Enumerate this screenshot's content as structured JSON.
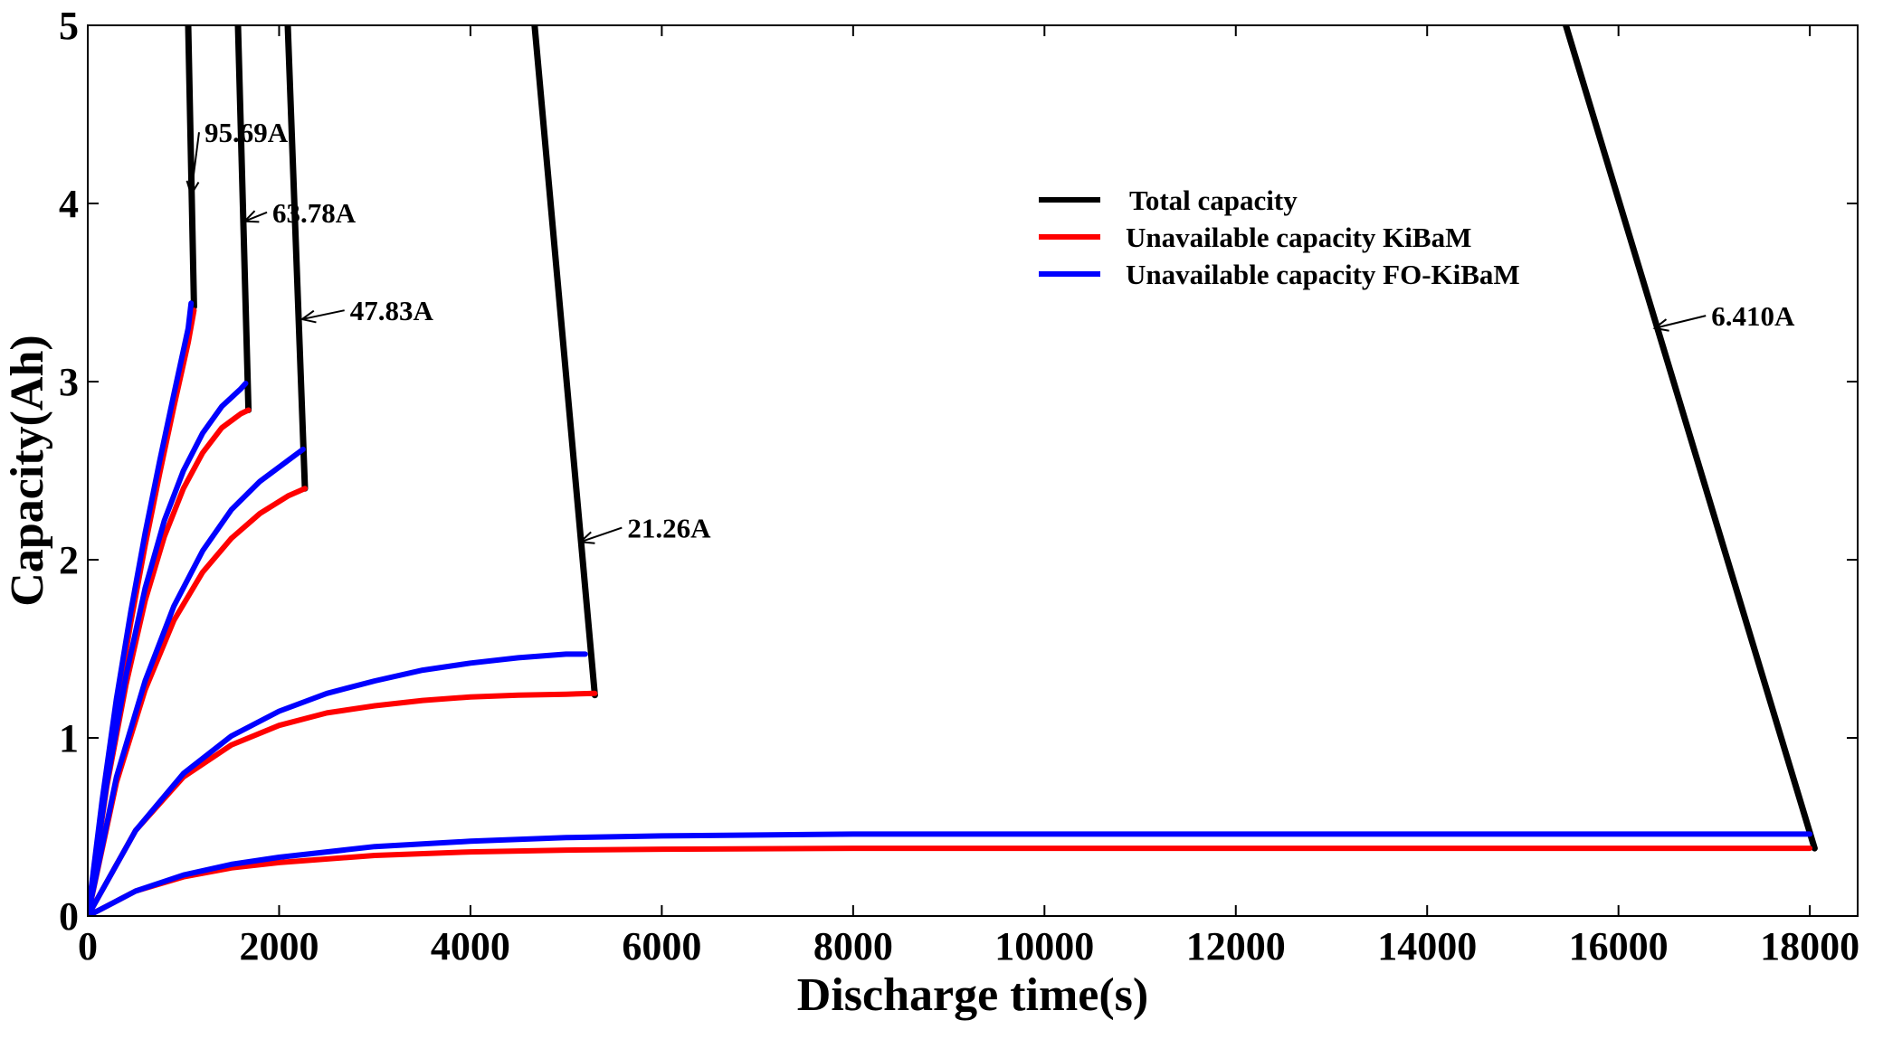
{
  "chart_data": {
    "type": "line",
    "title": "",
    "xlabel": "Discharge time(s)",
    "ylabel": "Capacity(Ah)",
    "xlim": [
      0,
      18500
    ],
    "ylim": [
      0,
      5
    ],
    "xticks": [
      0,
      2000,
      4000,
      6000,
      8000,
      10000,
      12000,
      14000,
      16000,
      18000
    ],
    "yticks": [
      0,
      1,
      2,
      3,
      4,
      5
    ],
    "grid": false,
    "legend_position": "top-center",
    "legend": [
      {
        "label": "Total capacity",
        "color": "#000000"
      },
      {
        "label": "Unavailable capacity KiBaM",
        "color": "#ff0000"
      },
      {
        "label": "Unavailable capacity FO-KiBaM",
        "color": "#0000ff"
      }
    ],
    "series": [
      {
        "name": "Total capacity 95.69A",
        "group": "total",
        "color": "#000000",
        "x": [
          1050,
          1110
        ],
        "y": [
          5.0,
          3.42
        ]
      },
      {
        "name": "Total capacity 63.78A",
        "group": "total",
        "color": "#000000",
        "x": [
          1570,
          1680
        ],
        "y": [
          5.0,
          2.84
        ]
      },
      {
        "name": "Total capacity 47.83A",
        "group": "total",
        "color": "#000000",
        "x": [
          2090,
          2270
        ],
        "y": [
          5.0,
          2.4
        ]
      },
      {
        "name": "Total capacity 21.26A",
        "group": "total",
        "color": "#000000",
        "x": [
          4670,
          5300
        ],
        "y": [
          5.0,
          1.24
        ]
      },
      {
        "name": "Total capacity 6.410A",
        "group": "total",
        "color": "#000000",
        "x": [
          15450,
          18050
        ],
        "y": [
          5.0,
          0.38
        ]
      },
      {
        "name": "KiBaM 95.69A",
        "group": "kibam",
        "color": "#ff0000",
        "x": [
          0,
          150,
          300,
          450,
          600,
          750,
          900,
          1050,
          1110
        ],
        "y": [
          0,
          0.62,
          1.17,
          1.65,
          2.08,
          2.48,
          2.86,
          3.22,
          3.4
        ]
      },
      {
        "name": "KiBaM 63.78A",
        "group": "kibam",
        "color": "#ff0000",
        "x": [
          0,
          200,
          400,
          600,
          800,
          1000,
          1200,
          1400,
          1600,
          1680
        ],
        "y": [
          0,
          0.73,
          1.3,
          1.77,
          2.13,
          2.4,
          2.6,
          2.74,
          2.82,
          2.84
        ]
      },
      {
        "name": "KiBaM 47.83A",
        "group": "kibam",
        "color": "#ff0000",
        "x": [
          0,
          300,
          600,
          900,
          1200,
          1500,
          1800,
          2100,
          2270
        ],
        "y": [
          0,
          0.75,
          1.27,
          1.66,
          1.93,
          2.12,
          2.26,
          2.36,
          2.4
        ]
      },
      {
        "name": "KiBaM 21.26A",
        "group": "kibam",
        "color": "#ff0000",
        "x": [
          0,
          500,
          1000,
          1500,
          2000,
          2500,
          3000,
          3500,
          4000,
          4500,
          5000,
          5300
        ],
        "y": [
          0,
          0.48,
          0.78,
          0.96,
          1.07,
          1.14,
          1.18,
          1.21,
          1.23,
          1.24,
          1.245,
          1.25
        ]
      },
      {
        "name": "KiBaM 6.410A",
        "group": "kibam",
        "color": "#ff0000",
        "x": [
          0,
          500,
          1000,
          1500,
          2000,
          3000,
          4000,
          5000,
          6000,
          8000,
          10000,
          14000,
          18000
        ],
        "y": [
          0,
          0.14,
          0.22,
          0.27,
          0.3,
          0.34,
          0.36,
          0.37,
          0.375,
          0.38,
          0.38,
          0.38,
          0.38
        ]
      },
      {
        "name": "FO-KiBaM 95.69A",
        "group": "fokibam",
        "color": "#0000ff",
        "x": [
          0,
          150,
          300,
          450,
          600,
          750,
          900,
          1050,
          1080
        ],
        "y": [
          0,
          0.65,
          1.22,
          1.71,
          2.15,
          2.55,
          2.93,
          3.3,
          3.44
        ]
      },
      {
        "name": "FO-KiBaM 63.78A",
        "group": "fokibam",
        "color": "#0000ff",
        "x": [
          0,
          200,
          400,
          600,
          800,
          1000,
          1200,
          1400,
          1600,
          1650
        ],
        "y": [
          0,
          0.75,
          1.35,
          1.84,
          2.22,
          2.5,
          2.71,
          2.86,
          2.96,
          2.99
        ]
      },
      {
        "name": "FO-KiBaM 47.83A",
        "group": "fokibam",
        "color": "#0000ff",
        "x": [
          0,
          300,
          600,
          900,
          1200,
          1500,
          1800,
          2100,
          2250
        ],
        "y": [
          0,
          0.78,
          1.32,
          1.74,
          2.05,
          2.28,
          2.44,
          2.56,
          2.62
        ]
      },
      {
        "name": "FO-KiBaM 21.26A",
        "group": "fokibam",
        "color": "#0000ff",
        "x": [
          0,
          500,
          1000,
          1500,
          2000,
          2500,
          3000,
          3500,
          4000,
          4500,
          5000,
          5200
        ],
        "y": [
          0,
          0.48,
          0.8,
          1.01,
          1.15,
          1.25,
          1.32,
          1.38,
          1.42,
          1.45,
          1.47,
          1.47
        ]
      },
      {
        "name": "FO-KiBaM 6.410A",
        "group": "fokibam",
        "color": "#0000ff",
        "x": [
          0,
          500,
          1000,
          1500,
          2000,
          3000,
          4000,
          5000,
          6000,
          8000,
          10000,
          14000,
          18000
        ],
        "y": [
          0,
          0.14,
          0.23,
          0.29,
          0.33,
          0.39,
          0.42,
          0.44,
          0.45,
          0.46,
          0.46,
          0.46,
          0.46
        ]
      }
    ],
    "annotations": [
      {
        "text": "95.69A",
        "target": [
          1080,
          4.05
        ],
        "text_at": [
          1220,
          4.4
        ]
      },
      {
        "text": "63.78A",
        "target": [
          1640,
          3.9
        ],
        "text_at": [
          1930,
          3.95
        ]
      },
      {
        "text": "47.83A",
        "target": [
          2240,
          3.35
        ],
        "text_at": [
          2740,
          3.4
        ]
      },
      {
        "text": "21.26A",
        "target": [
          5150,
          2.1
        ],
        "text_at": [
          5640,
          2.18
        ]
      },
      {
        "text": "6.410A",
        "target": [
          16380,
          3.3
        ],
        "text_at": [
          16970,
          3.37
        ]
      }
    ]
  }
}
